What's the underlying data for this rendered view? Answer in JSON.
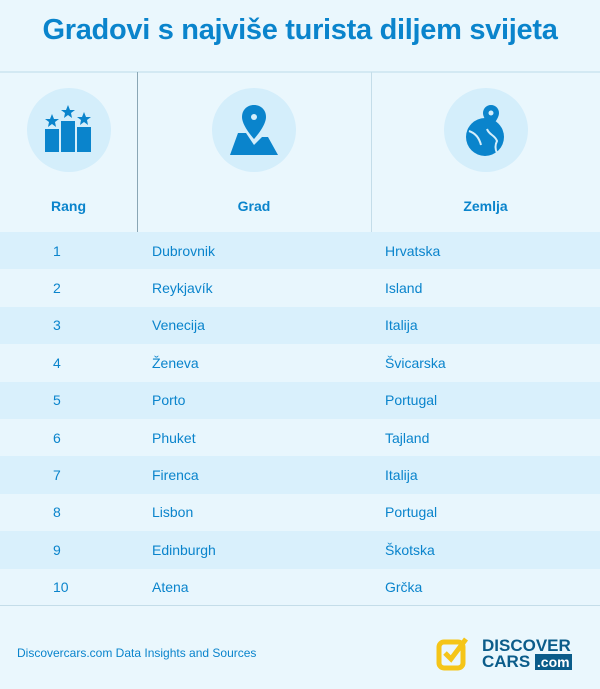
{
  "title": "Gradovi s najviše turista diljem svijeta",
  "columns": [
    {
      "label": "Rang",
      "icon": "podium-stars-icon"
    },
    {
      "label": "Grad",
      "icon": "map-pin-icon"
    },
    {
      "label": "Zemlja",
      "icon": "globe-pin-icon"
    }
  ],
  "rows": [
    {
      "rank": "1",
      "city": "Dubrovnik",
      "country": "Hrvatska"
    },
    {
      "rank": "2",
      "city": "Reykjavík",
      "country": "Island"
    },
    {
      "rank": "3",
      "city": "Venecija",
      "country": "Italija"
    },
    {
      "rank": "4",
      "city": "Ženeva",
      "country": "Švicarska"
    },
    {
      "rank": "5",
      "city": "Porto",
      "country": "Portugal"
    },
    {
      "rank": "6",
      "city": "Phuket",
      "country": "Tajland"
    },
    {
      "rank": "7",
      "city": "Firenca",
      "country": "Italija"
    },
    {
      "rank": "8",
      "city": "Lisbon",
      "country": "Portugal"
    },
    {
      "rank": "9",
      "city": "Edinburgh",
      "country": "Škotska"
    },
    {
      "rank": "10",
      "city": "Atena",
      "country": "Grčka"
    }
  ],
  "footer": {
    "source": "Discovercars.com Data Insights and Sources",
    "logo_line1": "DISCOVER",
    "logo_line2": "CARS",
    "logo_com": ".com"
  },
  "colors": {
    "accent": "#0a84cc",
    "logo_yellow": "#f5c518",
    "logo_dark": "#0b5c8a"
  }
}
